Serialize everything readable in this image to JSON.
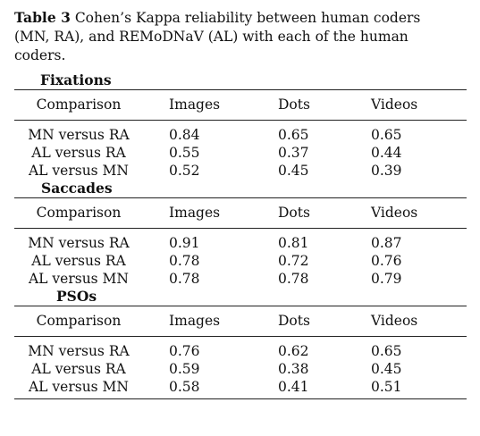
{
  "caption": {
    "label": "Table 3",
    "text": "Cohen’s Kappa reliability between human coders (MN, RA), and REMoDNaV (AL) with each of the human coders."
  },
  "columns": [
    "Comparison",
    "Images",
    "Dots",
    "Videos"
  ],
  "sections": [
    {
      "title": "Fixations",
      "rows": [
        [
          "MN versus RA",
          "0.84",
          "0.65",
          "0.65"
        ],
        [
          "AL versus RA",
          "0.55",
          "0.37",
          "0.44"
        ],
        [
          "AL versus MN",
          "0.52",
          "0.45",
          "0.39"
        ]
      ]
    },
    {
      "title": "Saccades",
      "rows": [
        [
          "MN versus RA",
          "0.91",
          "0.81",
          "0.87"
        ],
        [
          "AL versus RA",
          "0.78",
          "0.72",
          "0.76"
        ],
        [
          "AL versus MN",
          "0.78",
          "0.78",
          "0.79"
        ]
      ]
    },
    {
      "title": "PSOs",
      "rows": [
        [
          "MN versus RA",
          "0.76",
          "0.62",
          "0.65"
        ],
        [
          "AL versus RA",
          "0.59",
          "0.38",
          "0.45"
        ],
        [
          "AL versus MN",
          "0.58",
          "0.41",
          "0.51"
        ]
      ]
    }
  ]
}
